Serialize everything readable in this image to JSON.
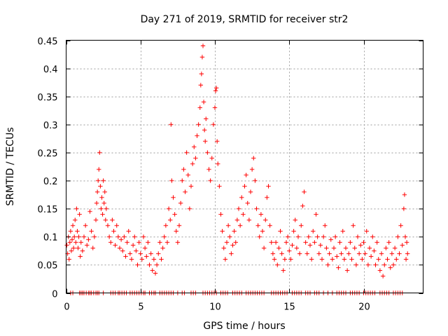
{
  "chart_data": {
    "type": "scatter",
    "title": "Day 271 of 2019, SRMTID for receiver str2",
    "xlabel": "GPS time / hours",
    "ylabel": "SRMTID / TECUs",
    "xlim": [
      0,
      24
    ],
    "ylim": [
      0,
      0.45
    ],
    "x_ticks": [
      0,
      5,
      10,
      15,
      20
    ],
    "x_tick_labels": [
      "0",
      "5",
      "10",
      "15",
      "20"
    ],
    "y_ticks": [
      0,
      0.05,
      0.1,
      0.15,
      0.2,
      0.25,
      0.3,
      0.35,
      0.4,
      0.45
    ],
    "y_tick_labels": [
      "0",
      "0.05",
      "0.1",
      "0.15",
      "0.2",
      "0.25",
      "0.3",
      "0.35",
      "0.4",
      "0.45"
    ],
    "grid": true,
    "marker": "+",
    "color": "#ff0000",
    "series": [
      {
        "name": "SRMTID",
        "points": [
          [
            0.05,
            0.085
          ],
          [
            0.1,
            0.07
          ],
          [
            0.15,
            0.1
          ],
          [
            0.2,
            0.06
          ],
          [
            0.25,
            0.09
          ],
          [
            0.3,
            0.11
          ],
          [
            0.35,
            0.075
          ],
          [
            0.4,
            0.095
          ],
          [
            0.45,
            0.12
          ],
          [
            0.5,
            0.08
          ],
          [
            0.55,
            0.1
          ],
          [
            0.6,
            0.13
          ],
          [
            0.65,
            0.09
          ],
          [
            0.7,
            0.15
          ],
          [
            0.75,
            0.11
          ],
          [
            0.8,
            0.08
          ],
          [
            0.85,
            0.1
          ],
          [
            0.9,
            0.14
          ],
          [
            0.95,
            0.065
          ],
          [
            1.0,
            0.09
          ],
          [
            1.1,
            0.075
          ],
          [
            1.2,
            0.1
          ],
          [
            1.3,
            0.12
          ],
          [
            1.4,
            0.085
          ],
          [
            1.5,
            0.095
          ],
          [
            1.6,
            0.145
          ],
          [
            1.7,
            0.11
          ],
          [
            1.8,
            0.08
          ],
          [
            1.9,
            0.1
          ],
          [
            2.0,
            0.13
          ],
          [
            2.05,
            0.16
          ],
          [
            2.1,
            0.18
          ],
          [
            2.15,
            0.2
          ],
          [
            2.2,
            0.22
          ],
          [
            2.25,
            0.25
          ],
          [
            2.3,
            0.19
          ],
          [
            2.35,
            0.15
          ],
          [
            2.4,
            0.17
          ],
          [
            2.45,
            0.14
          ],
          [
            2.5,
            0.2
          ],
          [
            2.55,
            0.16
          ],
          [
            2.6,
            0.18
          ],
          [
            2.65,
            0.13
          ],
          [
            2.7,
            0.15
          ],
          [
            2.8,
            0.12
          ],
          [
            2.9,
            0.1
          ],
          [
            3.0,
            0.09
          ],
          [
            3.1,
            0.13
          ],
          [
            3.2,
            0.11
          ],
          [
            3.3,
            0.085
          ],
          [
            3.4,
            0.12
          ],
          [
            3.5,
            0.1
          ],
          [
            3.6,
            0.08
          ],
          [
            3.7,
            0.095
          ],
          [
            3.8,
            0.075
          ],
          [
            3.9,
            0.1
          ],
          [
            4.0,
            0.065
          ],
          [
            4.1,
            0.09
          ],
          [
            4.2,
            0.11
          ],
          [
            4.3,
            0.07
          ],
          [
            4.4,
            0.06
          ],
          [
            4.5,
            0.085
          ],
          [
            4.6,
            0.1
          ],
          [
            4.7,
            0.075
          ],
          [
            4.8,
            0.05
          ],
          [
            4.9,
            0.09
          ],
          [
            5.0,
            0.07
          ],
          [
            5.1,
            0.06
          ],
          [
            5.2,
            0.1
          ],
          [
            5.3,
            0.08
          ],
          [
            5.4,
            0.065
          ],
          [
            5.5,
            0.09
          ],
          [
            5.6,
            0.05
          ],
          [
            5.7,
            0.07
          ],
          [
            5.8,
            0.04
          ],
          [
            5.9,
            0.06
          ],
          [
            6.0,
            0.035
          ],
          [
            6.1,
            0.05
          ],
          [
            6.2,
            0.07
          ],
          [
            6.3,
            0.09
          ],
          [
            6.4,
            0.06
          ],
          [
            6.5,
            0.08
          ],
          [
            6.6,
            0.1
          ],
          [
            6.7,
            0.12
          ],
          [
            6.8,
            0.09
          ],
          [
            6.9,
            0.15
          ],
          [
            7.0,
            0.13
          ],
          [
            7.05,
            0.3
          ],
          [
            7.1,
            0.2
          ],
          [
            7.2,
            0.17
          ],
          [
            7.3,
            0.14
          ],
          [
            7.4,
            0.11
          ],
          [
            7.5,
            0.09
          ],
          [
            7.6,
            0.12
          ],
          [
            7.7,
            0.16
          ],
          [
            7.8,
            0.2
          ],
          [
            7.9,
            0.22
          ],
          [
            8.0,
            0.18
          ],
          [
            8.1,
            0.25
          ],
          [
            8.2,
            0.21
          ],
          [
            8.3,
            0.15
          ],
          [
            8.4,
            0.19
          ],
          [
            8.5,
            0.23
          ],
          [
            8.6,
            0.26
          ],
          [
            8.7,
            0.24
          ],
          [
            8.8,
            0.28
          ],
          [
            8.9,
            0.3
          ],
          [
            9.0,
            0.33
          ],
          [
            9.05,
            0.37
          ],
          [
            9.1,
            0.39
          ],
          [
            9.15,
            0.42
          ],
          [
            9.2,
            0.44
          ],
          [
            9.25,
            0.34
          ],
          [
            9.3,
            0.29
          ],
          [
            9.35,
            0.27
          ],
          [
            9.4,
            0.31
          ],
          [
            9.5,
            0.25
          ],
          [
            9.6,
            0.22
          ],
          [
            9.7,
            0.2
          ],
          [
            9.8,
            0.24
          ],
          [
            9.9,
            0.3
          ],
          [
            10.0,
            0.33
          ],
          [
            10.05,
            0.36
          ],
          [
            10.1,
            0.365
          ],
          [
            10.15,
            0.27
          ],
          [
            10.2,
            0.23
          ],
          [
            10.3,
            0.19
          ],
          [
            10.4,
            0.14
          ],
          [
            10.5,
            0.11
          ],
          [
            10.6,
            0.08
          ],
          [
            10.7,
            0.06
          ],
          [
            10.8,
            0.09
          ],
          [
            10.9,
            0.12
          ],
          [
            11.0,
            0.1
          ],
          [
            11.1,
            0.07
          ],
          [
            11.2,
            0.085
          ],
          [
            11.3,
            0.11
          ],
          [
            11.4,
            0.09
          ],
          [
            11.5,
            0.13
          ],
          [
            11.6,
            0.15
          ],
          [
            11.7,
            0.12
          ],
          [
            11.8,
            0.17
          ],
          [
            11.9,
            0.14
          ],
          [
            12.0,
            0.19
          ],
          [
            12.1,
            0.21
          ],
          [
            12.2,
            0.16
          ],
          [
            12.3,
            0.13
          ],
          [
            12.4,
            0.18
          ],
          [
            12.5,
            0.22
          ],
          [
            12.6,
            0.24
          ],
          [
            12.7,
            0.2
          ],
          [
            12.8,
            0.15
          ],
          [
            12.9,
            0.12
          ],
          [
            13.0,
            0.1
          ],
          [
            13.1,
            0.14
          ],
          [
            13.2,
            0.11
          ],
          [
            13.3,
            0.08
          ],
          [
            13.4,
            0.13
          ],
          [
            13.5,
            0.17
          ],
          [
            13.6,
            0.19
          ],
          [
            13.7,
            0.12
          ],
          [
            13.8,
            0.09
          ],
          [
            13.9,
            0.07
          ],
          [
            14.0,
            0.06
          ],
          [
            14.1,
            0.09
          ],
          [
            14.2,
            0.05
          ],
          [
            14.3,
            0.08
          ],
          [
            14.4,
            0.11
          ],
          [
            14.5,
            0.07
          ],
          [
            14.6,
            0.04
          ],
          [
            14.7,
            0.06
          ],
          [
            14.8,
            0.09
          ],
          [
            14.9,
            0.1
          ],
          [
            15.0,
            0.075
          ],
          [
            15.1,
            0.06
          ],
          [
            15.2,
            0.085
          ],
          [
            15.3,
            0.11
          ],
          [
            15.4,
            0.13
          ],
          [
            15.5,
            0.08
          ],
          [
            15.6,
            0.1
          ],
          [
            15.7,
            0.07
          ],
          [
            15.8,
            0.12
          ],
          [
            15.9,
            0.155
          ],
          [
            16.0,
            0.18
          ],
          [
            16.1,
            0.09
          ],
          [
            16.2,
            0.07
          ],
          [
            16.3,
            0.1
          ],
          [
            16.4,
            0.085
          ],
          [
            16.5,
            0.06
          ],
          [
            16.6,
            0.11
          ],
          [
            16.7,
            0.09
          ],
          [
            16.8,
            0.14
          ],
          [
            16.9,
            0.1
          ],
          [
            17.0,
            0.07
          ],
          [
            17.1,
            0.085
          ],
          [
            17.2,
            0.06
          ],
          [
            17.3,
            0.1
          ],
          [
            17.4,
            0.12
          ],
          [
            17.5,
            0.08
          ],
          [
            17.6,
            0.05
          ],
          [
            17.7,
            0.07
          ],
          [
            17.8,
            0.095
          ],
          [
            17.9,
            0.06
          ],
          [
            18.0,
            0.08
          ],
          [
            18.1,
            0.1
          ],
          [
            18.2,
            0.065
          ],
          [
            18.3,
            0.045
          ],
          [
            18.4,
            0.09
          ],
          [
            18.5,
            0.07
          ],
          [
            18.6,
            0.11
          ],
          [
            18.7,
            0.06
          ],
          [
            18.8,
            0.08
          ],
          [
            18.9,
            0.04
          ],
          [
            19.0,
            0.07
          ],
          [
            19.1,
            0.09
          ],
          [
            19.2,
            0.06
          ],
          [
            19.3,
            0.12
          ],
          [
            19.4,
            0.08
          ],
          [
            19.5,
            0.05
          ],
          [
            19.6,
            0.1
          ],
          [
            19.7,
            0.07
          ],
          [
            19.8,
            0.085
          ],
          [
            19.9,
            0.06
          ],
          [
            20.0,
            0.09
          ],
          [
            20.1,
            0.07
          ],
          [
            20.2,
            0.11
          ],
          [
            20.3,
            0.05
          ],
          [
            20.4,
            0.08
          ],
          [
            20.5,
            0.065
          ],
          [
            20.6,
            0.1
          ],
          [
            20.7,
            0.075
          ],
          [
            20.8,
            0.05
          ],
          [
            20.9,
            0.09
          ],
          [
            21.0,
            0.06
          ],
          [
            21.1,
            0.04
          ],
          [
            21.2,
            0.07
          ],
          [
            21.3,
            0.03
          ],
          [
            21.4,
            0.05
          ],
          [
            21.5,
            0.08
          ],
          [
            21.6,
            0.06
          ],
          [
            21.7,
            0.09
          ],
          [
            21.8,
            0.045
          ],
          [
            21.9,
            0.07
          ],
          [
            22.0,
            0.05
          ],
          [
            22.1,
            0.08
          ],
          [
            22.2,
            0.06
          ],
          [
            22.3,
            0.1
          ],
          [
            22.4,
            0.07
          ],
          [
            22.5,
            0.12
          ],
          [
            22.6,
            0.085
          ],
          [
            22.7,
            0.15
          ],
          [
            22.75,
            0.175
          ],
          [
            22.8,
            0.1
          ],
          [
            22.85,
            0.06
          ],
          [
            22.9,
            0.09
          ],
          [
            22.95,
            0.07
          ]
        ]
      }
    ],
    "zero_points_x": [
      0.3,
      0.45,
      0.9,
      1.0,
      1.1,
      1.2,
      1.35,
      1.5,
      1.6,
      1.7,
      1.85,
      2.0,
      2.1,
      2.2,
      2.5,
      3.0,
      3.15,
      3.3,
      3.5,
      3.6,
      3.75,
      3.9,
      4.05,
      4.3,
      4.45,
      4.6,
      4.75,
      4.9,
      5.05,
      5.2,
      5.3,
      5.6,
      5.75,
      5.9,
      6.0,
      6.3,
      6.45,
      6.6,
      6.75,
      6.9,
      7.05,
      7.2,
      7.5,
      7.8,
      7.95,
      8.4,
      8.55,
      8.7,
      9.2,
      9.35,
      9.5,
      9.65,
      9.8,
      9.95,
      10.1,
      10.4,
      10.55,
      10.7,
      10.85,
      11.2,
      11.35,
      11.5,
      11.65,
      11.8,
      12.1,
      12.25,
      12.4,
      12.55,
      12.7,
      12.85,
      13.0,
      13.15,
      13.3,
      13.8,
      13.95,
      14.1,
      14.25,
      14.4,
      14.55,
      14.7,
      14.85,
      15.2,
      15.35,
      15.5,
      15.65,
      15.8,
      16.1,
      16.25,
      16.4,
      16.7,
      16.85,
      17.0,
      17.3,
      17.6,
      17.9,
      18.2,
      18.35,
      18.5,
      18.65,
      18.8,
      19.1,
      19.25,
      19.4,
      19.55,
      19.7,
      20.0,
      20.15,
      20.3,
      20.45,
      20.6,
      20.75,
      21.1,
      21.25,
      21.4,
      21.55,
      21.7,
      22.0,
      22.15,
      22.3,
      22.45,
      22.6
    ]
  }
}
